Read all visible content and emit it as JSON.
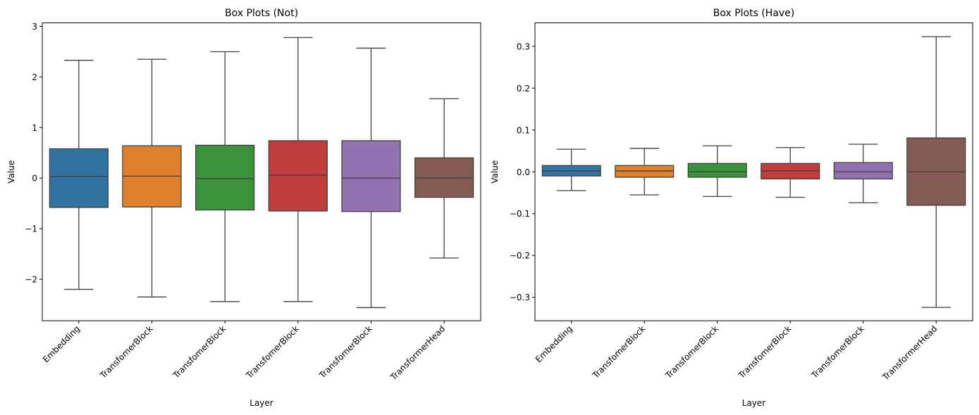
{
  "chart_data": [
    {
      "type": "box",
      "title": "Box Plots (Not)",
      "xlabel": "Layer",
      "ylabel": "Value",
      "ylim": [
        -2.82,
        3.07
      ],
      "yticks": [
        -2,
        -1,
        0,
        1,
        2,
        3
      ],
      "ytick_labels": [
        "−2",
        "−1",
        "0",
        "1",
        "2",
        "3"
      ],
      "grid": false,
      "legend": "none",
      "categories": [
        "Embedding",
        "TransfomerBlock",
        "TransfomerBlock",
        "TransfomerBlock",
        "TransfomerBlock",
        "TransformerHead"
      ],
      "colors": [
        "#3274a1",
        "#e1812c",
        "#3a923a",
        "#c03d3e",
        "#9372b2",
        "#845b53"
      ],
      "boxes": [
        {
          "whislo": -2.2,
          "q1": -0.58,
          "med": 0.03,
          "q3": 0.58,
          "whishi": 2.33
        },
        {
          "whislo": -2.35,
          "q1": -0.57,
          "med": 0.04,
          "q3": 0.64,
          "whishi": 2.35
        },
        {
          "whislo": -2.44,
          "q1": -0.63,
          "med": -0.01,
          "q3": 0.65,
          "whishi": 2.5
        },
        {
          "whislo": -2.44,
          "q1": -0.65,
          "med": 0.06,
          "q3": 0.74,
          "whishi": 2.78
        },
        {
          "whislo": -2.56,
          "q1": -0.66,
          "med": 0.0,
          "q3": 0.74,
          "whishi": 2.57
        },
        {
          "whislo": -1.58,
          "q1": -0.38,
          "med": 0.0,
          "q3": 0.4,
          "whishi": 1.57
        }
      ]
    },
    {
      "type": "box",
      "title": "Box Plots (Have)",
      "xlabel": "Layer",
      "ylabel": "Value",
      "ylim": [
        -0.356,
        0.356
      ],
      "yticks": [
        -0.3,
        -0.2,
        -0.1,
        0.0,
        0.1,
        0.2,
        0.3
      ],
      "ytick_labels": [
        "−0.3",
        "−0.2",
        "−0.1",
        "0.0",
        "0.1",
        "0.2",
        "0.3"
      ],
      "grid": false,
      "legend": "none",
      "categories": [
        "Embedding",
        "TransfomerBlock",
        "TransfomerBlock",
        "TransfomerBlock",
        "TransfomerBlock",
        "TransformerHead"
      ],
      "colors": [
        "#3274a1",
        "#e1812c",
        "#3a923a",
        "#c03d3e",
        "#9372b2",
        "#845b53"
      ],
      "boxes": [
        {
          "whislo": -0.045,
          "q1": -0.01,
          "med": 0.002,
          "q3": 0.015,
          "whishi": 0.054
        },
        {
          "whislo": -0.055,
          "q1": -0.013,
          "med": 0.002,
          "q3": 0.015,
          "whishi": 0.056
        },
        {
          "whislo": -0.059,
          "q1": -0.013,
          "med": 0.0,
          "q3": 0.02,
          "whishi": 0.062
        },
        {
          "whislo": -0.061,
          "q1": -0.017,
          "med": 0.002,
          "q3": 0.02,
          "whishi": 0.058
        },
        {
          "whislo": -0.074,
          "q1": -0.017,
          "med": 0.0,
          "q3": 0.022,
          "whishi": 0.066
        },
        {
          "whislo": -0.324,
          "q1": -0.08,
          "med": 0.0,
          "q3": 0.081,
          "whishi": 0.323
        }
      ]
    }
  ]
}
